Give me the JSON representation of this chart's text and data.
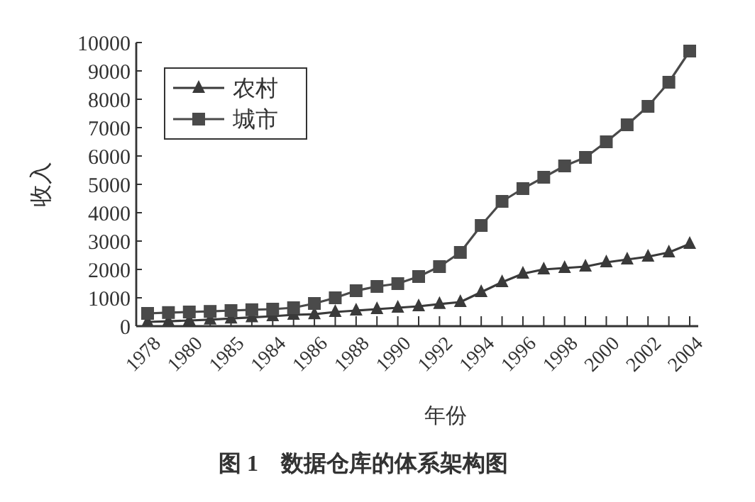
{
  "chart_data": {
    "type": "line",
    "xlabel": "年份",
    "ylabel": "收入",
    "categories": [
      "1978",
      null,
      "1980",
      null,
      "1985",
      null,
      "1984",
      null,
      "1986",
      null,
      "1988",
      null,
      "1990",
      null,
      "1992",
      null,
      "1994",
      null,
      "1996",
      null,
      "1998",
      null,
      "2000",
      null,
      "2002",
      null,
      "2004"
    ],
    "series": [
      {
        "name": "农村",
        "color": "#3a3a3a",
        "marker": "triangle",
        "values": [
          150,
          170,
          200,
          230,
          270,
          310,
          350,
          400,
          420,
          500,
          550,
          600,
          650,
          700,
          780,
          850,
          1200,
          1550,
          1850,
          2000,
          2050,
          2100,
          2250,
          2350,
          2450,
          2600,
          2900
        ]
      },
      {
        "name": "城市",
        "color": "#4a4a4a",
        "marker": "square",
        "values": [
          450,
          480,
          500,
          520,
          550,
          580,
          600,
          650,
          800,
          1000,
          1250,
          1400,
          1500,
          1750,
          2100,
          2600,
          3550,
          4400,
          4850,
          5250,
          5650,
          5950,
          6500,
          7100,
          7750,
          8600,
          9700
        ]
      }
    ],
    "ylim": [
      0,
      10000
    ],
    "yticks": [
      0,
      1000,
      2000,
      3000,
      4000,
      5000,
      6000,
      7000,
      8000,
      9000,
      10000
    ],
    "grid": false,
    "legend": "top left",
    "line_style": "solid",
    "annotations": [
      "图 1　数据仓库的体系架构图"
    ]
  }
}
